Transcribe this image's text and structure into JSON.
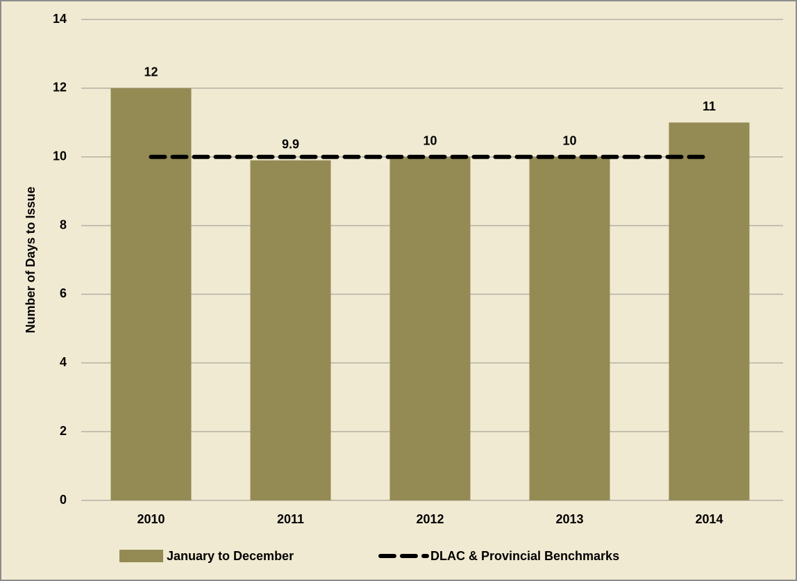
{
  "chart_data": {
    "type": "bar",
    "y_label": "Number of Days to Issue",
    "categories": [
      "2010",
      "2011",
      "2012",
      "2013",
      "2014"
    ],
    "series": [
      {
        "name": "January to December",
        "type": "bar",
        "color": "#948a54",
        "values": [
          12,
          9.9,
          10,
          10,
          11
        ]
      },
      {
        "name": "DLAC & Provincial Benchmarks",
        "type": "line",
        "color": "#000000",
        "values": [
          10,
          10,
          10,
          10,
          10
        ]
      }
    ],
    "ylim": [
      0,
      14
    ],
    "yticks": [
      0,
      2,
      4,
      6,
      8,
      10,
      12,
      14
    ],
    "grid": true,
    "legend": "bottom"
  }
}
